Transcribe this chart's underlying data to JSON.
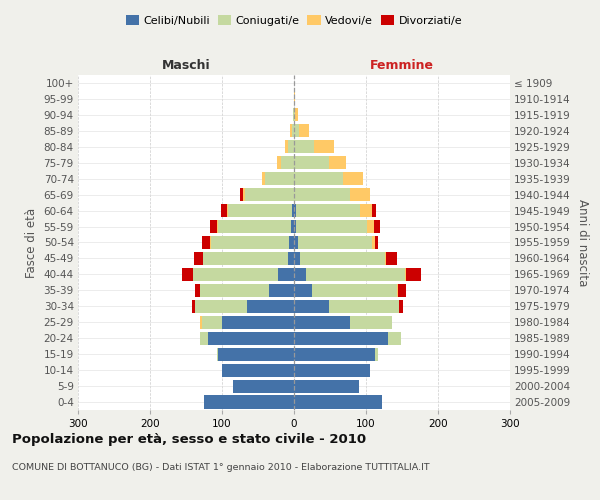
{
  "age_groups": [
    "0-4",
    "5-9",
    "10-14",
    "15-19",
    "20-24",
    "25-29",
    "30-34",
    "35-39",
    "40-44",
    "45-49",
    "50-54",
    "55-59",
    "60-64",
    "65-69",
    "70-74",
    "75-79",
    "80-84",
    "85-89",
    "90-94",
    "95-99",
    "100+"
  ],
  "birth_years": [
    "2005-2009",
    "2000-2004",
    "1995-1999",
    "1990-1994",
    "1985-1989",
    "1980-1984",
    "1975-1979",
    "1970-1974",
    "1965-1969",
    "1960-1964",
    "1955-1959",
    "1950-1954",
    "1945-1949",
    "1940-1944",
    "1935-1939",
    "1930-1934",
    "1925-1929",
    "1920-1924",
    "1915-1919",
    "1910-1914",
    "≤ 1909"
  ],
  "male": {
    "celibe": [
      125,
      85,
      100,
      105,
      120,
      100,
      65,
      35,
      22,
      9,
      7,
      4,
      3,
      0,
      0,
      0,
      0,
      0,
      0,
      0,
      0
    ],
    "coniugato": [
      0,
      0,
      0,
      2,
      10,
      28,
      72,
      95,
      118,
      118,
      108,
      102,
      88,
      68,
      40,
      18,
      8,
      3,
      1,
      0,
      0
    ],
    "vedovo": [
      0,
      0,
      0,
      0,
      0,
      2,
      0,
      0,
      0,
      0,
      1,
      1,
      2,
      3,
      4,
      5,
      4,
      2,
      1,
      0,
      0
    ],
    "divorziato": [
      0,
      0,
      0,
      0,
      0,
      0,
      5,
      8,
      15,
      12,
      12,
      10,
      8,
      4,
      0,
      0,
      0,
      0,
      0,
      0,
      0
    ]
  },
  "female": {
    "nubile": [
      122,
      90,
      105,
      112,
      130,
      78,
      48,
      25,
      16,
      8,
      6,
      3,
      3,
      0,
      0,
      0,
      0,
      0,
      0,
      0,
      0
    ],
    "coniugata": [
      0,
      0,
      0,
      4,
      18,
      58,
      98,
      118,
      138,
      118,
      102,
      98,
      88,
      78,
      68,
      48,
      28,
      7,
      2,
      0,
      0
    ],
    "vedova": [
      0,
      0,
      0,
      0,
      0,
      0,
      0,
      2,
      2,
      2,
      4,
      10,
      18,
      28,
      28,
      24,
      28,
      14,
      3,
      1,
      0
    ],
    "divorziata": [
      0,
      0,
      0,
      0,
      0,
      0,
      5,
      10,
      20,
      15,
      5,
      8,
      5,
      0,
      0,
      0,
      0,
      0,
      0,
      0,
      0
    ]
  },
  "colors": {
    "celibe": "#4472a8",
    "coniugato": "#c5d9a0",
    "vedovo": "#ffc966",
    "divorziato": "#cc0000"
  },
  "xlim": 300,
  "title": "Popolazione per età, sesso e stato civile - 2010",
  "subtitle": "COMUNE DI BOTTANUCO (BG) - Dati ISTAT 1° gennaio 2010 - Elaborazione TUTTITALIA.IT",
  "ylabel_left": "Fasce di età",
  "ylabel_right": "Anni di nascita",
  "maschi_label": "Maschi",
  "femmine_label": "Femmine",
  "legend_labels": [
    "Celibi/Nubili",
    "Coniugati/e",
    "Vedovi/e",
    "Divorziati/e"
  ],
  "bg_color": "#f0f0eb",
  "plot_bg_color": "#ffffff"
}
